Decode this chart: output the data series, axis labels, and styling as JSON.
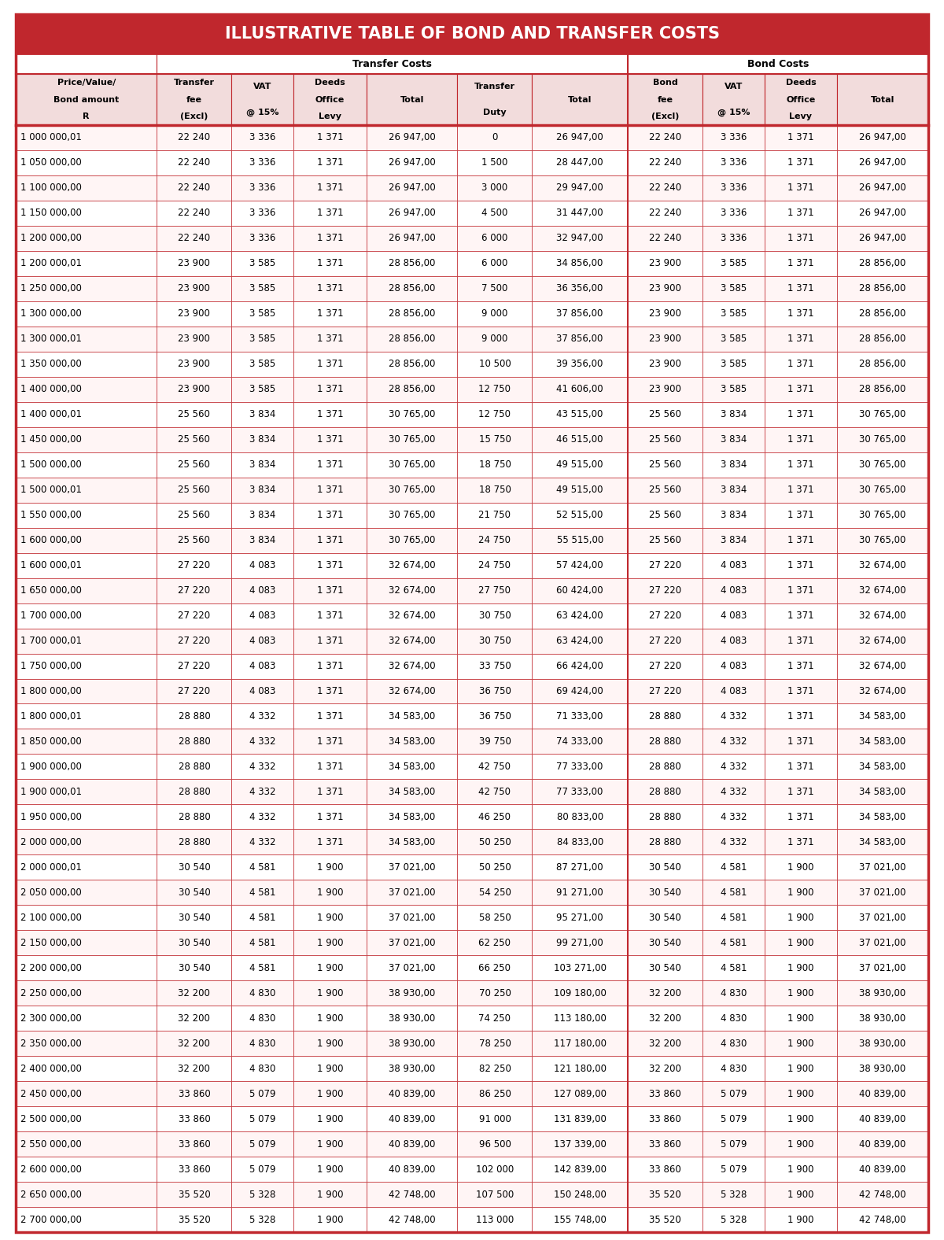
{
  "title": "ILLUSTRATIVE TABLE OF BOND AND TRANSFER COSTS",
  "title_bg": "#C0272D",
  "title_color": "#FFFFFF",
  "header_bg": "#F2DCDC",
  "border_color": "#C0272D",
  "col_headers": [
    "Price/Value/\nBond amount\nR",
    "Transfer\nfee\n(Excl)",
    "VAT\n@ 15%",
    "Deeds\nOffice\nLevy",
    "Total",
    "Transfer\nDuty",
    "Total",
    "Bond\nfee\n(Excl)",
    "VAT\n@ 15%",
    "Deeds\nOffice\nLevy",
    "Total"
  ],
  "rows": [
    [
      "1 000 000,01",
      "22 240",
      "3 336",
      "1 371",
      "26 947,00",
      "0",
      "26 947,00",
      "22 240",
      "3 336",
      "1 371",
      "26 947,00"
    ],
    [
      "1 050 000,00",
      "22 240",
      "3 336",
      "1 371",
      "26 947,00",
      "1 500",
      "28 447,00",
      "22 240",
      "3 336",
      "1 371",
      "26 947,00"
    ],
    [
      "1 100 000,00",
      "22 240",
      "3 336",
      "1 371",
      "26 947,00",
      "3 000",
      "29 947,00",
      "22 240",
      "3 336",
      "1 371",
      "26 947,00"
    ],
    [
      "1 150 000,00",
      "22 240",
      "3 336",
      "1 371",
      "26 947,00",
      "4 500",
      "31 447,00",
      "22 240",
      "3 336",
      "1 371",
      "26 947,00"
    ],
    [
      "1 200 000,00",
      "22 240",
      "3 336",
      "1 371",
      "26 947,00",
      "6 000",
      "32 947,00",
      "22 240",
      "3 336",
      "1 371",
      "26 947,00"
    ],
    [
      "1 200 000,01",
      "23 900",
      "3 585",
      "1 371",
      "28 856,00",
      "6 000",
      "34 856,00",
      "23 900",
      "3 585",
      "1 371",
      "28 856,00"
    ],
    [
      "1 250 000,00",
      "23 900",
      "3 585",
      "1 371",
      "28 856,00",
      "7 500",
      "36 356,00",
      "23 900",
      "3 585",
      "1 371",
      "28 856,00"
    ],
    [
      "1 300 000,00",
      "23 900",
      "3 585",
      "1 371",
      "28 856,00",
      "9 000",
      "37 856,00",
      "23 900",
      "3 585",
      "1 371",
      "28 856,00"
    ],
    [
      "1 300 000,01",
      "23 900",
      "3 585",
      "1 371",
      "28 856,00",
      "9 000",
      "37 856,00",
      "23 900",
      "3 585",
      "1 371",
      "28 856,00"
    ],
    [
      "1 350 000,00",
      "23 900",
      "3 585",
      "1 371",
      "28 856,00",
      "10 500",
      "39 356,00",
      "23 900",
      "3 585",
      "1 371",
      "28 856,00"
    ],
    [
      "1 400 000,00",
      "23 900",
      "3 585",
      "1 371",
      "28 856,00",
      "12 750",
      "41 606,00",
      "23 900",
      "3 585",
      "1 371",
      "28 856,00"
    ],
    [
      "1 400 000,01",
      "25 560",
      "3 834",
      "1 371",
      "30 765,00",
      "12 750",
      "43 515,00",
      "25 560",
      "3 834",
      "1 371",
      "30 765,00"
    ],
    [
      "1 450 000,00",
      "25 560",
      "3 834",
      "1 371",
      "30 765,00",
      "15 750",
      "46 515,00",
      "25 560",
      "3 834",
      "1 371",
      "30 765,00"
    ],
    [
      "1 500 000,00",
      "25 560",
      "3 834",
      "1 371",
      "30 765,00",
      "18 750",
      "49 515,00",
      "25 560",
      "3 834",
      "1 371",
      "30 765,00"
    ],
    [
      "1 500 000,01",
      "25 560",
      "3 834",
      "1 371",
      "30 765,00",
      "18 750",
      "49 515,00",
      "25 560",
      "3 834",
      "1 371",
      "30 765,00"
    ],
    [
      "1 550 000,00",
      "25 560",
      "3 834",
      "1 371",
      "30 765,00",
      "21 750",
      "52 515,00",
      "25 560",
      "3 834",
      "1 371",
      "30 765,00"
    ],
    [
      "1 600 000,00",
      "25 560",
      "3 834",
      "1 371",
      "30 765,00",
      "24 750",
      "55 515,00",
      "25 560",
      "3 834",
      "1 371",
      "30 765,00"
    ],
    [
      "1 600 000,01",
      "27 220",
      "4 083",
      "1 371",
      "32 674,00",
      "24 750",
      "57 424,00",
      "27 220",
      "4 083",
      "1 371",
      "32 674,00"
    ],
    [
      "1 650 000,00",
      "27 220",
      "4 083",
      "1 371",
      "32 674,00",
      "27 750",
      "60 424,00",
      "27 220",
      "4 083",
      "1 371",
      "32 674,00"
    ],
    [
      "1 700 000,00",
      "27 220",
      "4 083",
      "1 371",
      "32 674,00",
      "30 750",
      "63 424,00",
      "27 220",
      "4 083",
      "1 371",
      "32 674,00"
    ],
    [
      "1 700 000,01",
      "27 220",
      "4 083",
      "1 371",
      "32 674,00",
      "30 750",
      "63 424,00",
      "27 220",
      "4 083",
      "1 371",
      "32 674,00"
    ],
    [
      "1 750 000,00",
      "27 220",
      "4 083",
      "1 371",
      "32 674,00",
      "33 750",
      "66 424,00",
      "27 220",
      "4 083",
      "1 371",
      "32 674,00"
    ],
    [
      "1 800 000,00",
      "27 220",
      "4 083",
      "1 371",
      "32 674,00",
      "36 750",
      "69 424,00",
      "27 220",
      "4 083",
      "1 371",
      "32 674,00"
    ],
    [
      "1 800 000,01",
      "28 880",
      "4 332",
      "1 371",
      "34 583,00",
      "36 750",
      "71 333,00",
      "28 880",
      "4 332",
      "1 371",
      "34 583,00"
    ],
    [
      "1 850 000,00",
      "28 880",
      "4 332",
      "1 371",
      "34 583,00",
      "39 750",
      "74 333,00",
      "28 880",
      "4 332",
      "1 371",
      "34 583,00"
    ],
    [
      "1 900 000,00",
      "28 880",
      "4 332",
      "1 371",
      "34 583,00",
      "42 750",
      "77 333,00",
      "28 880",
      "4 332",
      "1 371",
      "34 583,00"
    ],
    [
      "1 900 000,01",
      "28 880",
      "4 332",
      "1 371",
      "34 583,00",
      "42 750",
      "77 333,00",
      "28 880",
      "4 332",
      "1 371",
      "34 583,00"
    ],
    [
      "1 950 000,00",
      "28 880",
      "4 332",
      "1 371",
      "34 583,00",
      "46 250",
      "80 833,00",
      "28 880",
      "4 332",
      "1 371",
      "34 583,00"
    ],
    [
      "2 000 000,00",
      "28 880",
      "4 332",
      "1 371",
      "34 583,00",
      "50 250",
      "84 833,00",
      "28 880",
      "4 332",
      "1 371",
      "34 583,00"
    ],
    [
      "2 000 000,01",
      "30 540",
      "4 581",
      "1 900",
      "37 021,00",
      "50 250",
      "87 271,00",
      "30 540",
      "4 581",
      "1 900",
      "37 021,00"
    ],
    [
      "2 050 000,00",
      "30 540",
      "4 581",
      "1 900",
      "37 021,00",
      "54 250",
      "91 271,00",
      "30 540",
      "4 581",
      "1 900",
      "37 021,00"
    ],
    [
      "2 100 000,00",
      "30 540",
      "4 581",
      "1 900",
      "37 021,00",
      "58 250",
      "95 271,00",
      "30 540",
      "4 581",
      "1 900",
      "37 021,00"
    ],
    [
      "2 150 000,00",
      "30 540",
      "4 581",
      "1 900",
      "37 021,00",
      "62 250",
      "99 271,00",
      "30 540",
      "4 581",
      "1 900",
      "37 021,00"
    ],
    [
      "2 200 000,00",
      "30 540",
      "4 581",
      "1 900",
      "37 021,00",
      "66 250",
      "103 271,00",
      "30 540",
      "4 581",
      "1 900",
      "37 021,00"
    ],
    [
      "2 250 000,00",
      "32 200",
      "4 830",
      "1 900",
      "38 930,00",
      "70 250",
      "109 180,00",
      "32 200",
      "4 830",
      "1 900",
      "38 930,00"
    ],
    [
      "2 300 000,00",
      "32 200",
      "4 830",
      "1 900",
      "38 930,00",
      "74 250",
      "113 180,00",
      "32 200",
      "4 830",
      "1 900",
      "38 930,00"
    ],
    [
      "2 350 000,00",
      "32 200",
      "4 830",
      "1 900",
      "38 930,00",
      "78 250",
      "117 180,00",
      "32 200",
      "4 830",
      "1 900",
      "38 930,00"
    ],
    [
      "2 400 000,00",
      "32 200",
      "4 830",
      "1 900",
      "38 930,00",
      "82 250",
      "121 180,00",
      "32 200",
      "4 830",
      "1 900",
      "38 930,00"
    ],
    [
      "2 450 000,00",
      "33 860",
      "5 079",
      "1 900",
      "40 839,00",
      "86 250",
      "127 089,00",
      "33 860",
      "5 079",
      "1 900",
      "40 839,00"
    ],
    [
      "2 500 000,00",
      "33 860",
      "5 079",
      "1 900",
      "40 839,00",
      "91 000",
      "131 839,00",
      "33 860",
      "5 079",
      "1 900",
      "40 839,00"
    ],
    [
      "2 550 000,00",
      "33 860",
      "5 079",
      "1 900",
      "40 839,00",
      "96 500",
      "137 339,00",
      "33 860",
      "5 079",
      "1 900",
      "40 839,00"
    ],
    [
      "2 600 000,00",
      "33 860",
      "5 079",
      "1 900",
      "40 839,00",
      "102 000",
      "142 839,00",
      "33 860",
      "5 079",
      "1 900",
      "40 839,00"
    ],
    [
      "2 650 000,00",
      "35 520",
      "5 328",
      "1 900",
      "42 748,00",
      "107 500",
      "150 248,00",
      "35 520",
      "5 328",
      "1 900",
      "42 748,00"
    ],
    [
      "2 700 000,00",
      "35 520",
      "5 328",
      "1 900",
      "42 748,00",
      "113 000",
      "155 748,00",
      "35 520",
      "5 328",
      "1 900",
      "42 748,00"
    ]
  ]
}
